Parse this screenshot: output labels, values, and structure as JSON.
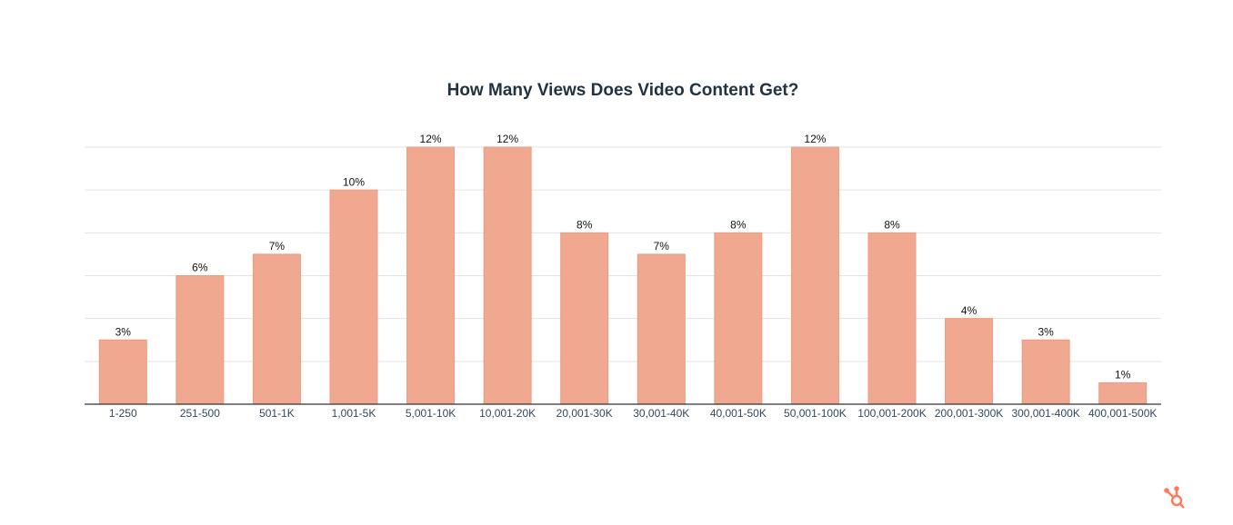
{
  "chart_data": {
    "type": "bar",
    "title": "How Many Views Does Video Content Get?",
    "categories": [
      "1-250",
      "251-500",
      "501-1K",
      "1,001-5K",
      "5,001-10K",
      "10,001-20K",
      "20,001-30K",
      "30,001-40K",
      "40,001-50K",
      "50,001-100K",
      "100,001-200K",
      "200,001-300K",
      "300,001-400K",
      "400,001-500K"
    ],
    "values": [
      3,
      6,
      7,
      10,
      12,
      12,
      8,
      7,
      8,
      12,
      8,
      4,
      3,
      1
    ],
    "value_labels": [
      "3%",
      "6%",
      "7%",
      "10%",
      "12%",
      "12%",
      "8%",
      "7%",
      "8%",
      "12%",
      "8%",
      "4%",
      "3%",
      "1%"
    ],
    "color": "#f0a891",
    "ylim": [
      0,
      12
    ],
    "yticks": [
      0,
      2,
      4,
      6,
      8,
      10,
      12
    ],
    "grid": true
  }
}
